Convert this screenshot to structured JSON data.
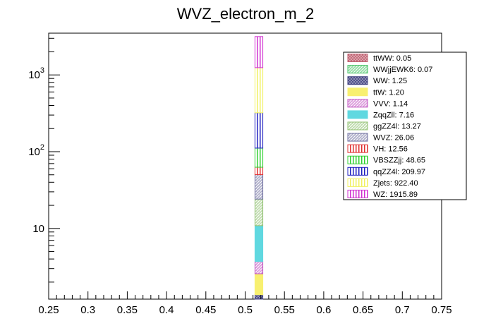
{
  "chart_data": {
    "type": "bar",
    "stacked": true,
    "title": "WVZ_electron_m_2",
    "xlabel": "",
    "ylabel": "",
    "xlim": [
      0.25,
      0.75
    ],
    "ylim": [
      1.2,
      3500
    ],
    "yscale": "log",
    "grid": false,
    "legend_position": "top-right",
    "bin": [
      0.5125,
      0.5225
    ],
    "x_ticks": [
      "0.25",
      "0.3",
      "0.35",
      "0.4",
      "0.45",
      "0.5",
      "0.55",
      "0.6",
      "0.65",
      "0.7",
      "0.75"
    ],
    "y_ticks": [
      {
        "value": 10,
        "base": "10",
        "exp": ""
      },
      {
        "value": 100,
        "base": "10",
        "exp": "2"
      },
      {
        "value": 1000,
        "base": "10",
        "exp": "3"
      }
    ],
    "series": [
      {
        "name": "ttWW: 0.05",
        "value": 0.05,
        "color": "#c06070",
        "pattern": "cross"
      },
      {
        "name": "WWjjEWK6: 0.07",
        "value": 0.07,
        "color": "#40c060",
        "pattern": "hatch"
      },
      {
        "name": "WW: 1.25",
        "value": 1.25,
        "color": "#404080",
        "pattern": "cross"
      },
      {
        "name": "ttW: 1.20",
        "value": 1.2,
        "color": "#f8f070",
        "pattern": "solid"
      },
      {
        "name": "VVV: 1.14",
        "value": 1.14,
        "color": "#c050c0",
        "pattern": "hatch"
      },
      {
        "name": "ZqqZll: 7.16",
        "value": 7.16,
        "color": "#60d8e0",
        "pattern": "solid"
      },
      {
        "name": "ggZZ4l: 13.27",
        "value": 13.27,
        "color": "#90c070",
        "pattern": "hatch"
      },
      {
        "name": "WVZ: 26.06",
        "value": 26.06,
        "color": "#7070a0",
        "pattern": "hatch"
      },
      {
        "name": "VH: 12.56",
        "value": 12.56,
        "color": "#e03030",
        "pattern": "vlines"
      },
      {
        "name": "VBSZZjj: 48.65",
        "value": 48.65,
        "color": "#30d030",
        "pattern": "vlines"
      },
      {
        "name": "qqZZ4l: 209.97",
        "value": 209.97,
        "color": "#2020c0",
        "pattern": "vlines"
      },
      {
        "name": "Zjets: 922.40",
        "value": 922.4,
        "color": "#f0f060",
        "pattern": "vlines"
      },
      {
        "name": "WZ: 1915.89",
        "value": 1915.89,
        "color": "#d030d0",
        "pattern": "vlines"
      }
    ]
  }
}
